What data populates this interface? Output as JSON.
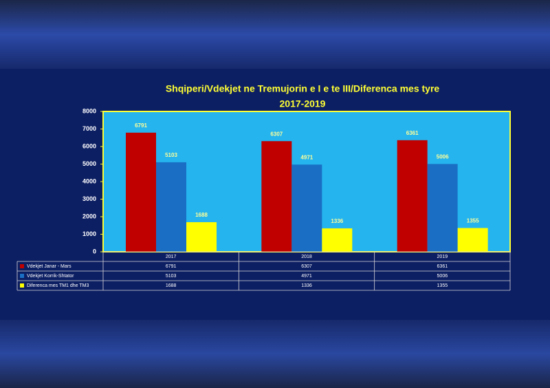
{
  "chart_data": {
    "type": "bar",
    "title": "Shqiperi/Vdekjet ne Tremujorin e I e te III/Diferenca mes tyre",
    "subtitle": "2017-2019",
    "categories": [
      "2017",
      "2018",
      "2019"
    ],
    "series": [
      {
        "name": "Vdekjet Janar - Mars",
        "color": "#c00000",
        "values": [
          6791,
          6307,
          6361
        ]
      },
      {
        "name": "Vdekjet Korrik-Shtator",
        "color": "#1a6fc4",
        "values": [
          5103,
          4971,
          5006
        ]
      },
      {
        "name": "Diferenca mes TM1 dhe TM3",
        "color": "#ffff00",
        "values": [
          1688,
          1336,
          1355
        ]
      }
    ],
    "ylim": [
      0,
      8000
    ],
    "yticks": [
      0,
      1000,
      2000,
      3000,
      4000,
      5000,
      6000,
      7000,
      8000
    ],
    "data_table": true
  }
}
